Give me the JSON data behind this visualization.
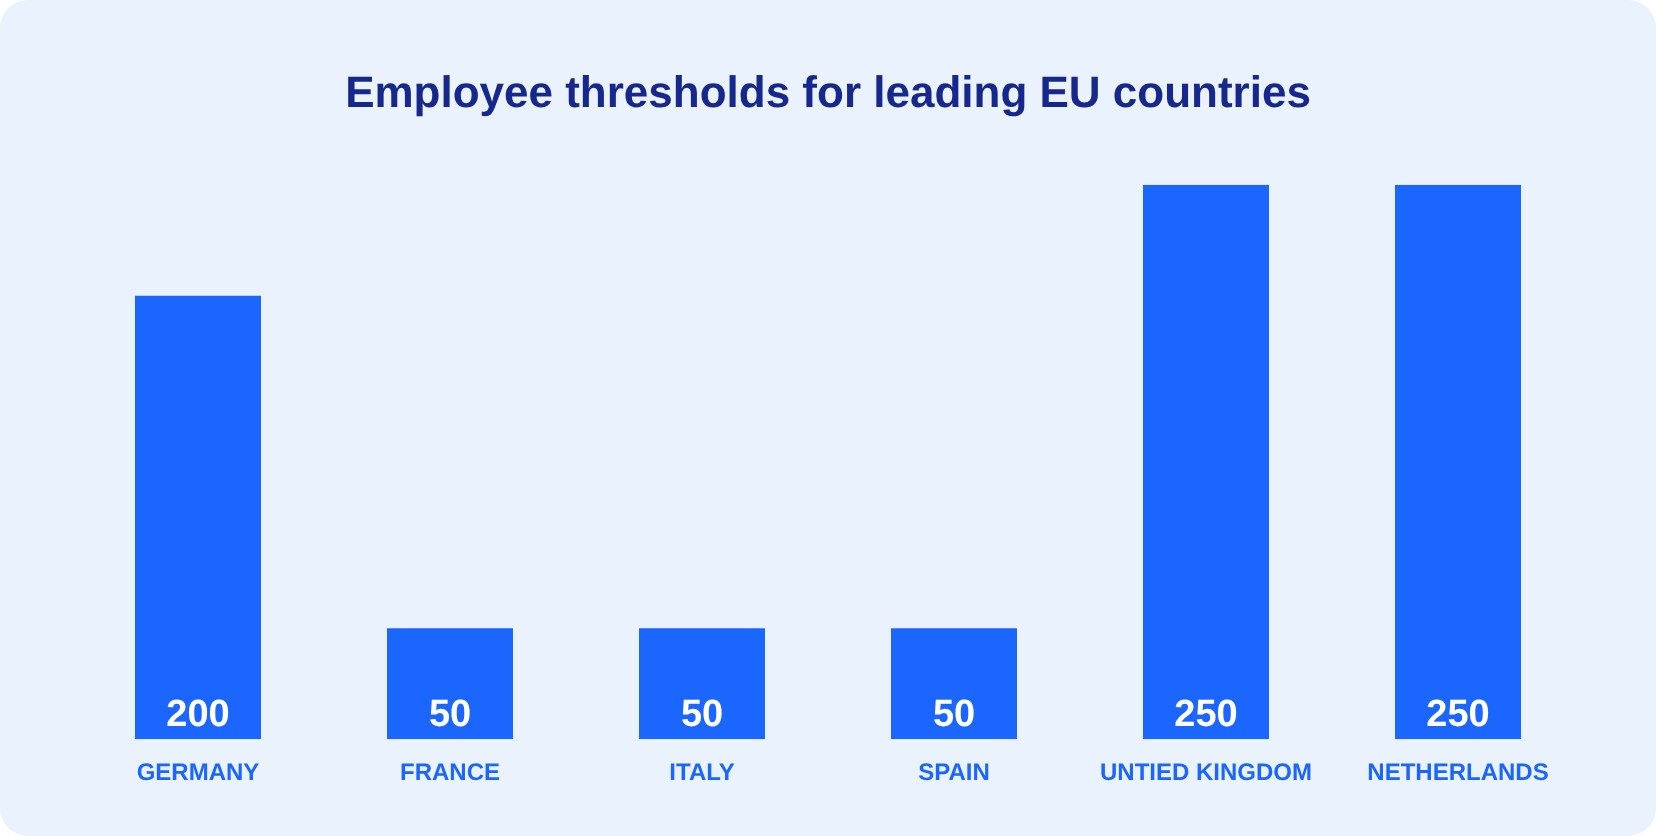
{
  "chart_data": {
    "type": "bar",
    "title": "Employee thresholds for leading EU countries",
    "categories": [
      "GERMANY",
      "FRANCE",
      "ITALY",
      "SPAIN",
      "UNTIED KINGDOM",
      "NETHERLANDS"
    ],
    "values": [
      200,
      50,
      50,
      50,
      250,
      250
    ],
    "color": "#1a66ff",
    "data_labels": true,
    "grid": false,
    "legend": false
  }
}
